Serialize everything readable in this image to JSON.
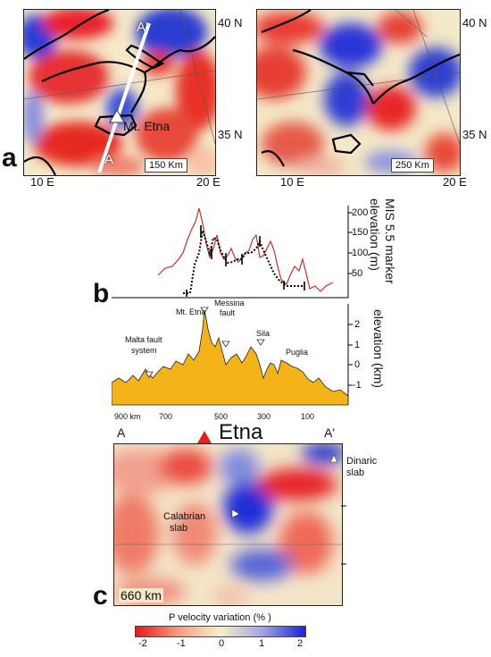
{
  "panel_a": {
    "letter": "a",
    "map1": {
      "scale": "150 Km",
      "lat_top": "40 N",
      "lat_bottom": "35 N",
      "lon_left": "10 E",
      "lon_right": "20 E",
      "section_start": "A",
      "section_end": "A'",
      "volcano": "Mt. Etna"
    },
    "map2": {
      "scale": "250 Km",
      "lat_top": "40 N",
      "lat_bottom": "35 N",
      "lon_left": "10 E",
      "lon_right": "20 E"
    }
  },
  "panel_b": {
    "letter": "b",
    "mis_axis_label_1": "MIS 5.5 marker",
    "mis_axis_label_2": "elevation (m)",
    "mis_ticks": [
      "200",
      "150",
      "100",
      "50"
    ],
    "elev_axis_label": "elevation (km)",
    "elev_ticks": [
      "2",
      "1",
      "0",
      "-1"
    ],
    "distance_ticks": [
      "900 km",
      "700",
      "500",
      "300",
      "100"
    ],
    "annotations": {
      "malta": [
        "Malta fault",
        "system"
      ],
      "etna": "Mt. Etna",
      "messina": [
        "Messina",
        "fault"
      ],
      "sila": "Sila",
      "puglia": "Puglia"
    }
  },
  "panel_c": {
    "letter": "c",
    "start": "A",
    "end": "A'",
    "title": "Etna",
    "depth": "660 km",
    "calabrian": [
      "Calabrian",
      "slab"
    ],
    "dinaric": [
      "Dinaric",
      "slab"
    ]
  },
  "colorbar": {
    "title": "P velocity variation (%  )",
    "ticks": [
      "-2",
      "-1",
      "0",
      "1",
      "2"
    ],
    "colors": [
      "#e8181a",
      "#f79a7c",
      "#f5f0c8",
      "#9fa3e6",
      "#1b23d8"
    ]
  }
}
